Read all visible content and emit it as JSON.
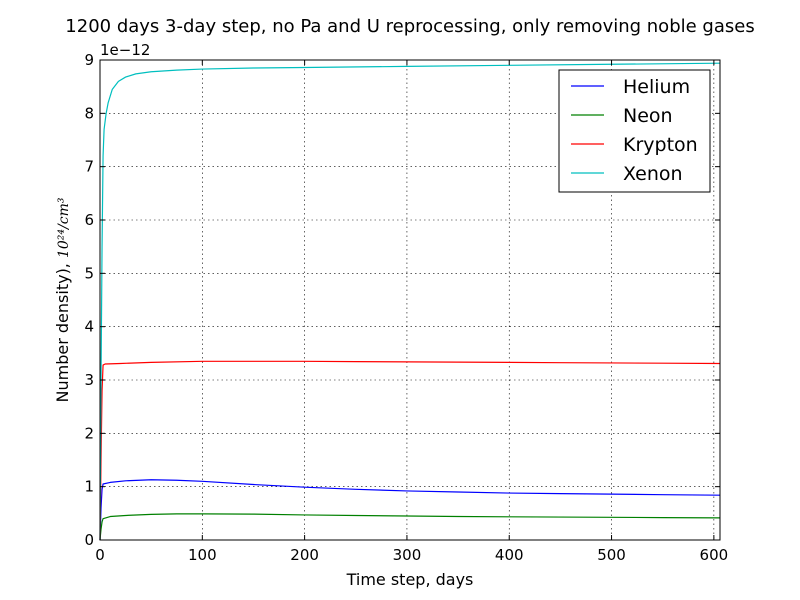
{
  "chart_data": {
    "type": "line",
    "title": "1200 days 3-day step, no Pa and U reprocessing, only removing noble gases",
    "xlabel": "Time step, days",
    "ylabel_prefix": "Number density), ",
    "ylabel_unit": "10²⁴/cm³",
    "y_multiplier_label": "1e−12",
    "xlim": [
      0,
      606
    ],
    "ylim": [
      0,
      9
    ],
    "x_ticks": [
      0,
      100,
      200,
      300,
      400,
      500,
      600
    ],
    "y_ticks": [
      0,
      1,
      2,
      3,
      4,
      5,
      6,
      7,
      8,
      9
    ],
    "grid": true,
    "legend_position": "top-right",
    "series": [
      {
        "name": "Helium",
        "color": "#0000ff",
        "points": [
          [
            0,
            0
          ],
          [
            1,
            0.6
          ],
          [
            2,
            0.95
          ],
          [
            3,
            1.05
          ],
          [
            10,
            1.08
          ],
          [
            25,
            1.11
          ],
          [
            50,
            1.13
          ],
          [
            75,
            1.12
          ],
          [
            100,
            1.1
          ],
          [
            150,
            1.04
          ],
          [
            200,
            0.99
          ],
          [
            250,
            0.95
          ],
          [
            300,
            0.92
          ],
          [
            350,
            0.9
          ],
          [
            400,
            0.88
          ],
          [
            450,
            0.87
          ],
          [
            500,
            0.86
          ],
          [
            550,
            0.85
          ],
          [
            606,
            0.84
          ]
        ]
      },
      {
        "name": "Neon",
        "color": "#008000",
        "points": [
          [
            0,
            0
          ],
          [
            1,
            0.2
          ],
          [
            2,
            0.34
          ],
          [
            3,
            0.4
          ],
          [
            10,
            0.44
          ],
          [
            25,
            0.46
          ],
          [
            50,
            0.48
          ],
          [
            75,
            0.49
          ],
          [
            100,
            0.49
          ],
          [
            150,
            0.485
          ],
          [
            200,
            0.47
          ],
          [
            250,
            0.46
          ],
          [
            300,
            0.45
          ],
          [
            350,
            0.44
          ],
          [
            400,
            0.435
          ],
          [
            450,
            0.43
          ],
          [
            500,
            0.425
          ],
          [
            550,
            0.42
          ],
          [
            606,
            0.415
          ]
        ]
      },
      {
        "name": "Krypton",
        "color": "#ff0000",
        "points": [
          [
            0,
            0
          ],
          [
            1,
            1.5
          ],
          [
            2,
            2.8
          ],
          [
            3,
            3.28
          ],
          [
            5,
            3.3
          ],
          [
            20,
            3.31
          ],
          [
            50,
            3.33
          ],
          [
            100,
            3.35
          ],
          [
            150,
            3.35
          ],
          [
            200,
            3.35
          ],
          [
            250,
            3.345
          ],
          [
            300,
            3.34
          ],
          [
            350,
            3.335
          ],
          [
            400,
            3.33
          ],
          [
            450,
            3.325
          ],
          [
            500,
            3.32
          ],
          [
            550,
            3.315
          ],
          [
            606,
            3.31
          ]
        ]
      },
      {
        "name": "Xenon",
        "color": "#00bfbf",
        "points": [
          [
            0,
            0
          ],
          [
            1,
            3.0
          ],
          [
            2,
            5.5
          ],
          [
            3,
            7.2
          ],
          [
            4,
            7.7
          ],
          [
            6,
            8.0
          ],
          [
            8,
            8.2
          ],
          [
            12,
            8.45
          ],
          [
            18,
            8.6
          ],
          [
            25,
            8.68
          ],
          [
            35,
            8.74
          ],
          [
            50,
            8.78
          ],
          [
            75,
            8.81
          ],
          [
            100,
            8.83
          ],
          [
            150,
            8.85
          ],
          [
            200,
            8.86
          ],
          [
            300,
            8.88
          ],
          [
            400,
            8.9
          ],
          [
            500,
            8.92
          ],
          [
            606,
            8.94
          ]
        ]
      }
    ]
  }
}
